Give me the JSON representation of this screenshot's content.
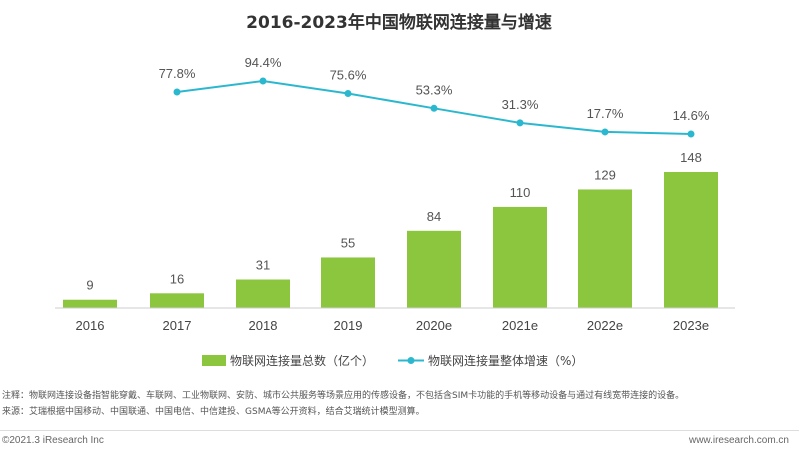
{
  "chart_data": {
    "type": "bar",
    "title": "2016-2023年中国物联网连接量与增速",
    "categories": [
      "2016",
      "2017",
      "2018",
      "2019",
      "2020e",
      "2021e",
      "2022e",
      "2023e"
    ],
    "series": [
      {
        "name": "物联网连接量总数（亿个）",
        "type": "bar",
        "values": [
          9,
          16,
          31,
          55,
          84,
          110,
          129,
          148
        ],
        "labels": [
          "9",
          "16",
          "31",
          "55",
          "84",
          "110",
          "129",
          "148"
        ],
        "color": "#8cc63f"
      },
      {
        "name": "物联网连接量整体增速（%）",
        "type": "line",
        "values": [
          null,
          77.8,
          94.4,
          75.6,
          53.3,
          31.3,
          17.7,
          14.6
        ],
        "labels": [
          "",
          "77.8%",
          "94.4%",
          "75.6%",
          "53.3%",
          "31.3%",
          "17.7%",
          "14.6%"
        ],
        "color": "#2bb8cf"
      }
    ],
    "ylim_bars": [
      0,
      148
    ],
    "ylim_line": [
      14.6,
      94.4
    ],
    "legend_position": "bottom"
  },
  "notes": {
    "note1": "注释：物联网连接设备指智能穿戴、车联网、工业物联网、安防、城市公共服务等场景应用的传感设备，不包括含SIM卡功能的手机等移动设备与通过有线宽带连接的设备。",
    "source": "来源：艾瑞根据中国移动、中国联通、中国电信、中信建投、GSMA等公开资料，结合艾瑞统计模型测算。"
  },
  "footer": {
    "copyright": "©2021.3 iResearch Inc",
    "website": "www.iresearch.com.cn"
  }
}
